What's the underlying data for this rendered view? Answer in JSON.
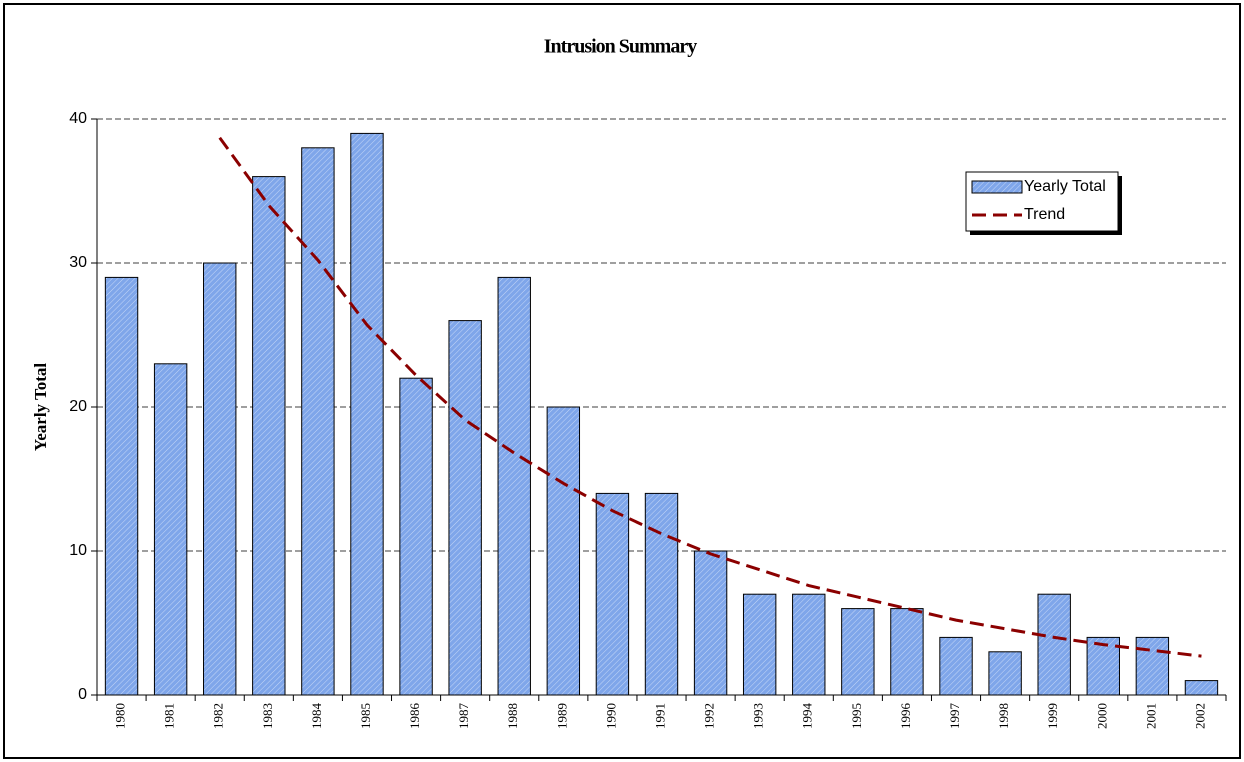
{
  "chart_data": {
    "type": "bar",
    "title": "Intrusion Summary",
    "y_label": "Yearly Total",
    "categories": [
      "1980",
      "1981",
      "1982",
      "1983",
      "1984",
      "1985",
      "1986",
      "1987",
      "1988",
      "1989",
      "1990",
      "1991",
      "1992",
      "1993",
      "1994",
      "1995",
      "1996",
      "1997",
      "1998",
      "1999",
      "2000",
      "2001",
      "2002"
    ],
    "series": [
      {
        "name": "Yearly Total",
        "type": "bar",
        "color": "#7fa6ea",
        "values": [
          29,
          23,
          30,
          36,
          38,
          39,
          22,
          26,
          29,
          20,
          14,
          14,
          10,
          7,
          7,
          6,
          6,
          4,
          3,
          7,
          4,
          4,
          1
        ]
      },
      {
        "name": "Trend",
        "type": "line",
        "color": "#8b0000",
        "values": [
          null,
          null,
          38.7,
          34.0,
          30.2,
          25.7,
          22.2,
          19.1,
          16.8,
          14.7,
          12.8,
          11.2,
          9.8,
          8.7,
          7.6,
          6.8,
          6.0,
          5.2,
          4.6,
          4.0,
          3.5,
          3.1,
          2.7
        ]
      }
    ],
    "ylim": [
      0,
      40
    ],
    "yticks": [
      0,
      10,
      20,
      30,
      40
    ],
    "grid": true,
    "legend": "upper right"
  }
}
